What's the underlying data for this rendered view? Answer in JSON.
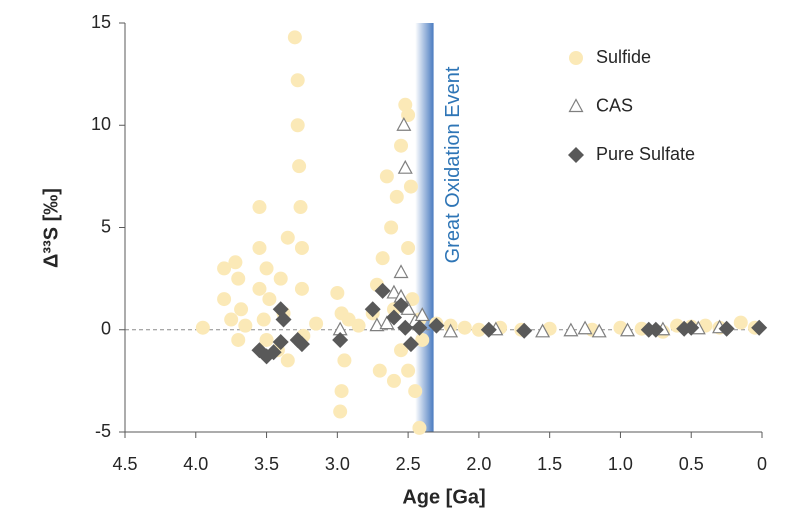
{
  "chart_data": {
    "type": "scatter",
    "x_label": "Age [Ga]",
    "y_label": "Δ³³S [‰]",
    "xlim": [
      4.5,
      0
    ],
    "ylim": [
      -5,
      15
    ],
    "xticks": [
      4.5,
      {
        "value": 4,
        "label": "4.0"
      },
      3.5,
      {
        "value": 3,
        "label": "3.0"
      },
      2.5,
      {
        "value": 2,
        "label": "2.0"
      },
      1.5,
      {
        "value": 1,
        "label": "1.0"
      },
      0.5,
      0
    ],
    "yticks": [
      -5,
      0,
      5,
      10,
      15
    ],
    "legend": "top-right",
    "annotation": {
      "text": "Great Oxidation Event",
      "x_range": [
        2.45,
        2.32
      ],
      "color": "#4a7bc0"
    },
    "series": [
      {
        "name": "Sulfide",
        "color": "#fbe9b7",
        "marker": "circle",
        "x": [
          3.95,
          3.8,
          3.8,
          3.75,
          3.72,
          3.7,
          3.7,
          3.68,
          3.65,
          3.55,
          3.55,
          3.55,
          3.52,
          3.5,
          3.5,
          3.48,
          3.42,
          3.4,
          3.38,
          3.35,
          3.35,
          3.3,
          3.28,
          3.28,
          3.27,
          3.26,
          3.25,
          3.25,
          3.24,
          3.15,
          3.0,
          2.98,
          2.97,
          2.97,
          2.95,
          2.92,
          2.85,
          2.75,
          2.72,
          2.7,
          2.68,
          2.65,
          2.62,
          2.6,
          2.6,
          2.58,
          2.55,
          2.55,
          2.52,
          2.5,
          2.5,
          2.5,
          2.48,
          2.47,
          2.45,
          2.42,
          2.42,
          2.4,
          2.3,
          2.2,
          2.1,
          2.0,
          1.85,
          1.7,
          1.5,
          1.2,
          1.0,
          0.85,
          0.7,
          0.6,
          0.5,
          0.4,
          0.3,
          0.15,
          0.05
        ],
        "y": [
          0.1,
          3.0,
          1.5,
          0.5,
          3.3,
          2.5,
          -0.5,
          1.0,
          0.2,
          6.0,
          4.0,
          2.0,
          0.5,
          3.0,
          -0.5,
          1.5,
          -1.0,
          2.5,
          0.8,
          4.5,
          -1.5,
          14.3,
          12.2,
          10.0,
          8.0,
          6.0,
          4.0,
          2.0,
          -0.3,
          0.3,
          1.8,
          -4.0,
          -3.0,
          0.8,
          -1.5,
          0.5,
          0.2,
          0.8,
          2.2,
          -2.0,
          3.5,
          7.5,
          5.0,
          1.0,
          -2.5,
          6.5,
          9.0,
          -1.0,
          11.0,
          10.5,
          4.0,
          -2.0,
          7.0,
          1.5,
          -3.0,
          -4.8,
          0.5,
          -0.5,
          0.3,
          0.2,
          0.1,
          0.0,
          0.1,
          0.0,
          0.05,
          0.0,
          0.1,
          0.05,
          -0.1,
          0.2,
          0.15,
          0.2,
          0.1,
          0.35,
          0.1
        ]
      },
      {
        "name": "CAS",
        "color": "#7f7f7f",
        "marker": "triangle-open",
        "x": [
          2.98,
          2.72,
          2.65,
          2.6,
          2.55,
          2.55,
          2.53,
          2.52,
          2.5,
          2.45,
          2.4,
          2.2,
          1.88,
          1.55,
          1.35,
          1.25,
          1.15,
          0.95,
          0.7,
          0.45,
          0.3
        ],
        "y": [
          0,
          0.2,
          0.3,
          1.8,
          2.8,
          1.6,
          10.0,
          7.9,
          1.0,
          0.4,
          0.7,
          -0.1,
          0,
          -0.1,
          -0.05,
          0.05,
          -0.1,
          -0.05,
          0.0,
          0.05,
          0.1
        ]
      },
      {
        "name": "Pure Sulfate",
        "color": "#595959",
        "marker": "diamond",
        "x": [
          3.55,
          3.5,
          3.45,
          3.4,
          3.4,
          3.38,
          3.28,
          3.25,
          2.98,
          2.75,
          2.68,
          2.6,
          2.55,
          2.52,
          2.48,
          2.42,
          2.3,
          1.93,
          1.68,
          0.8,
          0.75,
          0.55,
          0.5,
          0.25,
          0.02
        ],
        "y": [
          -1.0,
          -1.3,
          -1.1,
          1.0,
          -0.6,
          0.5,
          -0.5,
          -0.7,
          -0.5,
          1.0,
          1.9,
          0.6,
          1.2,
          0.1,
          -0.7,
          0.1,
          0.2,
          0.0,
          -0.05,
          0.0,
          0.0,
          0.05,
          0.1,
          0.05,
          0.1
        ]
      }
    ]
  }
}
